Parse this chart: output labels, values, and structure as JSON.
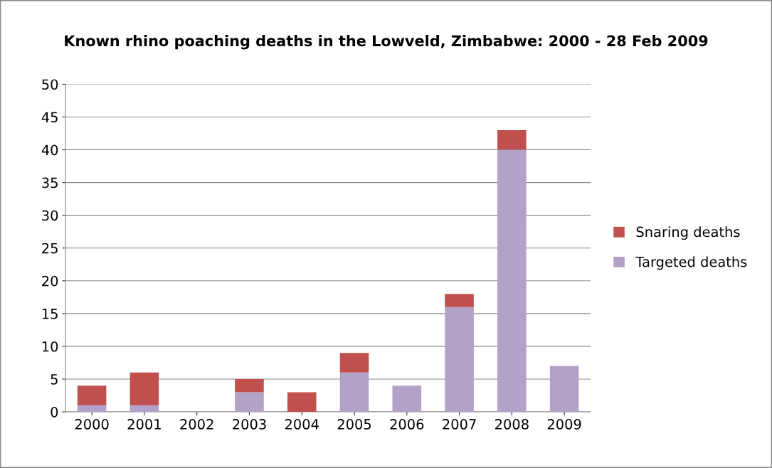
{
  "chart_data": {
    "type": "bar",
    "title": "Known rhino poaching deaths in the Lowveld, Zimbabwe: 2000 - 28 Feb 2009",
    "categories": [
      "2000",
      "2001",
      "2002",
      "2003",
      "2004",
      "2005",
      "2006",
      "2007",
      "2008",
      "2009"
    ],
    "stacked": true,
    "series": [
      {
        "name": "Targeted deaths",
        "color": "#b2a2c7",
        "values": [
          1,
          1,
          0,
          3,
          0,
          6,
          4,
          16,
          40,
          7
        ]
      },
      {
        "name": "Snaring deaths",
        "color": "#c0504d",
        "values": [
          3,
          5,
          0,
          2,
          3,
          3,
          0,
          2,
          3,
          0
        ]
      }
    ],
    "ylim": [
      0,
      50
    ],
    "yticks": [
      0,
      5,
      10,
      15,
      20,
      25,
      30,
      35,
      40,
      45,
      50
    ],
    "grid": "y",
    "legend": "right"
  }
}
